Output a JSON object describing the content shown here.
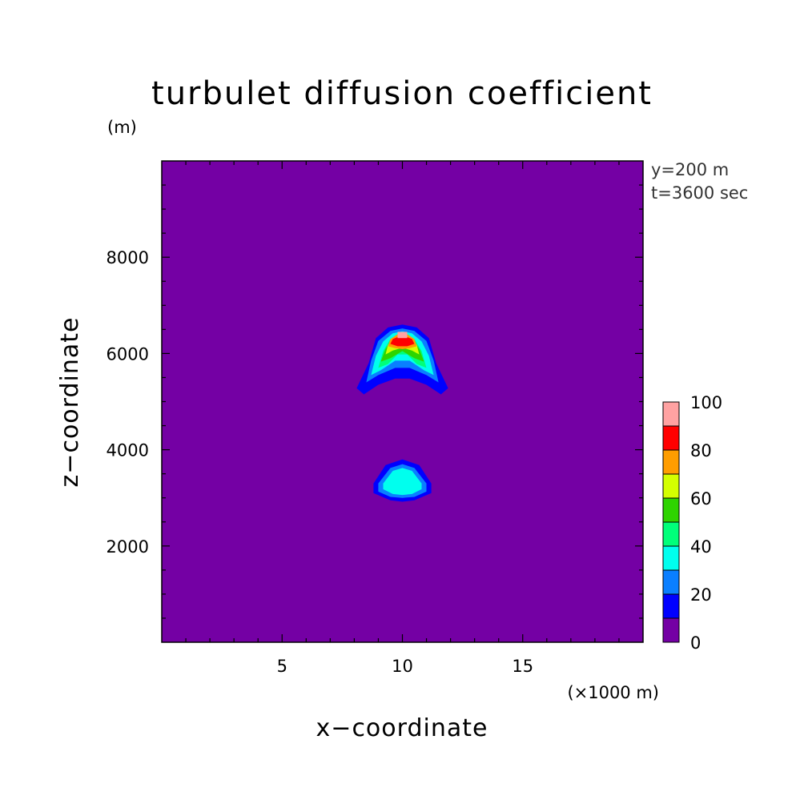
{
  "chart_data": {
    "type": "heatmap",
    "title": "turbulet diffusion coefficient",
    "xlabel": "x−coordinate",
    "ylabel": "z−coordinate",
    "x_unit": "(×1000 m)",
    "y_unit": "(m)",
    "xlim": [
      0,
      20
    ],
    "ylim": [
      0,
      10000
    ],
    "x_ticks": [
      5,
      10,
      15
    ],
    "x_tick_labels": [
      "5",
      "10",
      "15"
    ],
    "y_ticks": [
      2000,
      4000,
      6000,
      8000
    ],
    "y_tick_labels": [
      "2000",
      "4000",
      "6000",
      "8000"
    ],
    "info": [
      "y=200 m",
      "t=3600 sec"
    ],
    "background_level_color": "#7400a4",
    "colorbar": {
      "levels": [
        0,
        10,
        20,
        30,
        40,
        50,
        60,
        70,
        80,
        90,
        100
      ],
      "colors": [
        "#7400a4",
        "#0000ff",
        "#0a7fff",
        "#00ffee",
        "#00ff7a",
        "#2ed400",
        "#d4ff00",
        "#ff9d00",
        "#ff0000",
        "#ffa2a2"
      ],
      "tick_labels": [
        "0",
        "20",
        "40",
        "60",
        "80",
        "100"
      ]
    },
    "features": [
      {
        "name": "upper cell",
        "x_center": 10.0,
        "z_center": 5900,
        "max_value": 90,
        "level_regions": [
          {
            "level": 10,
            "polygon": [
              [
                8.4,
                5150
              ],
              [
                9.0,
                5350
              ],
              [
                9.7,
                5480
              ],
              [
                10.3,
                5480
              ],
              [
                11.0,
                5350
              ],
              [
                11.6,
                5150
              ],
              [
                11.9,
                5280
              ],
              [
                11.4,
                5800
              ],
              [
                11.1,
                6320
              ],
              [
                10.6,
                6540
              ],
              [
                10.0,
                6600
              ],
              [
                9.4,
                6540
              ],
              [
                8.9,
                6320
              ],
              [
                8.6,
                5800
              ],
              [
                8.1,
                5280
              ]
            ]
          },
          {
            "level": 20,
            "polygon": [
              [
                8.5,
                5400
              ],
              [
                9.0,
                5550
              ],
              [
                9.7,
                5700
              ],
              [
                10.3,
                5700
              ],
              [
                11.0,
                5550
              ],
              [
                11.5,
                5400
              ],
              [
                11.3,
                5850
              ],
              [
                11.0,
                6260
              ],
              [
                10.5,
                6470
              ],
              [
                10.0,
                6520
              ],
              [
                9.5,
                6470
              ],
              [
                9.0,
                6260
              ],
              [
                8.7,
                5850
              ]
            ]
          },
          {
            "level": 30,
            "polygon": [
              [
                8.7,
                5550
              ],
              [
                9.1,
                5650
              ],
              [
                9.7,
                5850
              ],
              [
                10.3,
                5850
              ],
              [
                10.9,
                5650
              ],
              [
                11.3,
                5550
              ],
              [
                11.1,
                5950
              ],
              [
                10.8,
                6250
              ],
              [
                10.4,
                6420
              ],
              [
                10.0,
                6460
              ],
              [
                9.6,
                6420
              ],
              [
                9.2,
                6250
              ],
              [
                8.9,
                5950
              ]
            ]
          },
          {
            "level": 40,
            "polygon": [
              [
                9.0,
                5700
              ],
              [
                9.4,
                5780
              ],
              [
                9.8,
                5980
              ],
              [
                10.2,
                5980
              ],
              [
                10.6,
                5780
              ],
              [
                11.0,
                5700
              ],
              [
                10.8,
                6050
              ],
              [
                10.5,
                6300
              ],
              [
                10.0,
                6380
              ],
              [
                9.5,
                6300
              ],
              [
                9.2,
                6050
              ]
            ]
          },
          {
            "level": 50,
            "polygon": [
              [
                9.1,
                5830
              ],
              [
                9.5,
                5900
              ],
              [
                10.0,
                6050
              ],
              [
                10.5,
                5900
              ],
              [
                10.9,
                5830
              ],
              [
                10.7,
                6100
              ],
              [
                10.4,
                6300
              ],
              [
                10.0,
                6360
              ],
              [
                9.6,
                6300
              ],
              [
                9.3,
                6100
              ]
            ]
          },
          {
            "level": 60,
            "polygon": [
              [
                9.3,
                5980
              ],
              [
                9.6,
                6060
              ],
              [
                10.0,
                6120
              ],
              [
                10.4,
                6060
              ],
              [
                10.7,
                5980
              ],
              [
                10.6,
                6180
              ],
              [
                10.3,
                6320
              ],
              [
                10.0,
                6350
              ],
              [
                9.7,
                6320
              ],
              [
                9.4,
                6180
              ]
            ]
          },
          {
            "level": 70,
            "polygon": [
              [
                9.4,
                6150
              ],
              [
                9.7,
                6110
              ],
              [
                10.0,
                6090
              ],
              [
                10.3,
                6110
              ],
              [
                10.6,
                6150
              ],
              [
                10.5,
                6300
              ],
              [
                10.2,
                6400
              ],
              [
                9.8,
                6400
              ],
              [
                9.5,
                6300
              ]
            ]
          },
          {
            "level": 80,
            "polygon": [
              [
                9.5,
                6200
              ],
              [
                9.8,
                6150
              ],
              [
                10.2,
                6150
              ],
              [
                10.5,
                6200
              ],
              [
                10.4,
                6300
              ],
              [
                10.1,
                6360
              ],
              [
                9.9,
                6360
              ],
              [
                9.6,
                6300
              ]
            ]
          },
          {
            "level": 90,
            "polygon": [
              [
                9.8,
                6320
              ],
              [
                10.2,
                6320
              ],
              [
                10.2,
                6450
              ],
              [
                9.8,
                6450
              ]
            ]
          }
        ]
      },
      {
        "name": "lower cell",
        "x_center": 10.0,
        "z_center": 3300,
        "max_value": 40,
        "level_regions": [
          {
            "level": 10,
            "polygon": [
              [
                8.8,
                3100
              ],
              [
                9.5,
                2950
              ],
              [
                10.0,
                2920
              ],
              [
                10.5,
                2950
              ],
              [
                11.2,
                3100
              ],
              [
                11.2,
                3300
              ],
              [
                10.7,
                3680
              ],
              [
                10.0,
                3800
              ],
              [
                9.3,
                3680
              ],
              [
                8.8,
                3300
              ]
            ]
          },
          {
            "level": 20,
            "polygon": [
              [
                9.0,
                3130
              ],
              [
                9.5,
                3020
              ],
              [
                10.0,
                3000
              ],
              [
                10.5,
                3020
              ],
              [
                11.0,
                3130
              ],
              [
                11.0,
                3300
              ],
              [
                10.5,
                3620
              ],
              [
                10.0,
                3700
              ],
              [
                9.5,
                3620
              ],
              [
                9.0,
                3300
              ]
            ]
          },
          {
            "level": 30,
            "polygon": [
              [
                9.2,
                3180
              ],
              [
                9.6,
                3080
              ],
              [
                10.0,
                3060
              ],
              [
                10.4,
                3080
              ],
              [
                10.8,
                3180
              ],
              [
                10.8,
                3300
              ],
              [
                10.4,
                3560
              ],
              [
                10.0,
                3620
              ],
              [
                9.6,
                3560
              ],
              [
                9.2,
                3300
              ]
            ]
          }
        ]
      }
    ]
  }
}
